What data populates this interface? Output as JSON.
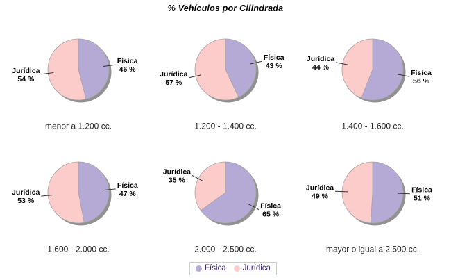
{
  "title": "% Vehículos por Cilindrada",
  "legend": {
    "items": [
      {
        "label": "Física"
      },
      {
        "label": "Jurídica"
      }
    ],
    "position": "bottom"
  },
  "colors": {
    "title_text": "#000000",
    "fisica": "#b5aad5",
    "juridica": "#fccccb",
    "shadow": "#919191",
    "slice_outline": "#a5a5a5",
    "leader_line": "#333333",
    "pie_label_text": "#000000",
    "category_label_text": "#262626",
    "legend_text": "#3f2a72",
    "legend_border": "#cccccc",
    "background": "#ffffff"
  },
  "chart_data": {
    "type": "pie",
    "title": "% Vehículos por Cilindrada",
    "unit": "%",
    "legend": [
      "Física",
      "Jurídica"
    ],
    "legend_position": "bottom",
    "series_colors": [
      "#b5aad5",
      "#fccccb"
    ],
    "grid": {
      "rows": 2,
      "cols": 3
    },
    "pies": [
      {
        "category": "menor a 1.200 cc.",
        "slices": [
          {
            "name": "Física",
            "value": 46
          },
          {
            "name": "Jurídica",
            "value": 54
          }
        ]
      },
      {
        "category": "1.200 - 1.400 cc.",
        "slices": [
          {
            "name": "Física",
            "value": 43
          },
          {
            "name": "Jurídica",
            "value": 57
          }
        ]
      },
      {
        "category": "1.400 - 1.600 cc.",
        "slices": [
          {
            "name": "Física",
            "value": 56
          },
          {
            "name": "Jurídica",
            "value": 44
          }
        ]
      },
      {
        "category": "1.600 - 2.000 cc.",
        "slices": [
          {
            "name": "Física",
            "value": 47
          },
          {
            "name": "Jurídica",
            "value": 53
          }
        ]
      },
      {
        "category": "2.000 - 2.500 cc.",
        "slices": [
          {
            "name": "Física",
            "value": 65
          },
          {
            "name": "Jurídica",
            "value": 35
          }
        ]
      },
      {
        "category": "mayor o igual a 2.500 cc.",
        "slices": [
          {
            "name": "Física",
            "value": 51
          },
          {
            "name": "Jurídica",
            "value": 49
          }
        ]
      }
    ]
  }
}
